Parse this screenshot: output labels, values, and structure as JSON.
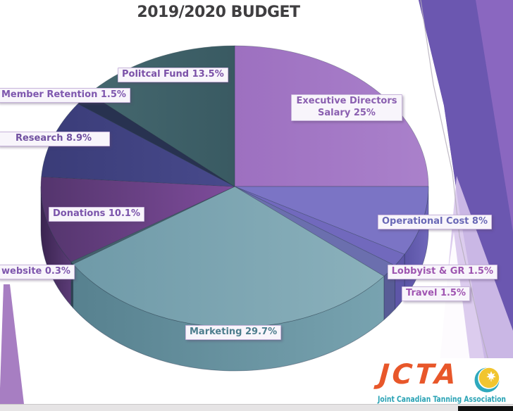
{
  "slide": {
    "title": "2019/2020 BUDGET"
  },
  "chart_data": {
    "type": "pie",
    "title": "2019/2020 BUDGET",
    "unit": "percent",
    "style": "3d-pie, labels in callout boxes, starts at 12 o'clock going clockwise",
    "slices": [
      {
        "name": "Executive Directors Salary",
        "value": 25,
        "callout": "Executive Directors\nSalary 25%",
        "label_color": "#8a5fb0",
        "top": "#aa81cb",
        "top2": "#9d70c0"
      },
      {
        "name": "Operational Cost",
        "value": 8,
        "callout": "Operational Cost 8%",
        "label_color": "#6968b6",
        "top": "#7b74c5",
        "wall": "#6f67ba",
        "wall2": "#5b54a6"
      },
      {
        "name": "Lobbyist & GR",
        "value": 1.5,
        "callout": "Lobbyist & GR 1.5%",
        "label_color": "#9e56b0",
        "top": "#7169bd",
        "wall": "#5e56a8"
      },
      {
        "name": "Travel",
        "value": 1.5,
        "callout": "Travel 1.5%",
        "label_color": "#a055b2",
        "top": "#6b6fae",
        "wall": "#585c96"
      },
      {
        "name": "Marketing",
        "value": 29.7,
        "callout": "Marketing 29.7%",
        "label_color": "#4c7d8d",
        "top": "#8bb1bc",
        "top2": "#6f9aa8",
        "wall": "#78a3b0",
        "wall2": "#57818f"
      },
      {
        "name": "website",
        "value": 0.3,
        "callout": "website 0.3%",
        "label_color": "#7e56ad",
        "top": "#44606d",
        "wall": "#2f4653"
      },
      {
        "name": "Donations",
        "value": 10.1,
        "callout": "Donations 10.1%",
        "label_color": "#7b54ab",
        "top": "#7e4c9b",
        "top2": "#54356d",
        "wall": "#5b3b76",
        "wall2": "#3a2450"
      },
      {
        "name": "Research",
        "value": 8.9,
        "callout": "Research 8.9%",
        "label_color": "#7050a0",
        "top": "#484a8c",
        "top2": "#3a3c78"
      },
      {
        "name": "Member Retention",
        "value": 1.5,
        "callout": "Member Retention 1.5%",
        "label_color": "#7e57ae",
        "top": "#283250"
      },
      {
        "name": "Politcal Fund",
        "value": 13.5,
        "callout": "Politcal Fund 13.5%",
        "label_color": "#7b51a8",
        "top": "#395a62",
        "top2": "#45686f"
      }
    ]
  },
  "logo": {
    "acronym": "JCTA",
    "tagline": "Joint Canadian Tanning Association",
    "acronym_color": "#e8572a",
    "tagline_color": "#2aa3b5",
    "globe_teal": "#2fa9bd",
    "globe_yellow": "#f1c52f"
  },
  "colors": {
    "title": "#3f3e40",
    "background": "#ffffff",
    "decor_mid": "#8a67c0",
    "decor_dark": "#6b57b0",
    "decor_lavender": "#d7c5ec",
    "corner_band": "#a77ec2",
    "thin_line": "#b5aebb",
    "bottom_bar": "#e6e4e5",
    "label_bg": "#f8f5fb",
    "label_border": "#c9b6dc"
  }
}
